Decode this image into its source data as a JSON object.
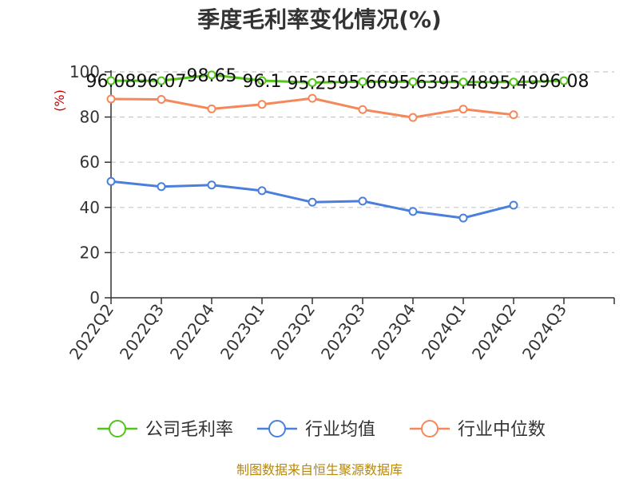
{
  "chart_data": {
    "type": "line",
    "title": "季度毛利率变化情况(%)",
    "ylabel": "(%)",
    "xlabel": "",
    "ylim": [
      0,
      100
    ],
    "yticks": [
      0,
      20,
      40,
      60,
      80,
      100
    ],
    "grid": true,
    "legend_position": "bottom",
    "categories": [
      "2022Q2",
      "2022Q3",
      "2022Q4",
      "2023Q1",
      "2023Q2",
      "2023Q3",
      "2023Q4",
      "2024Q1",
      "2024Q2",
      "2024Q3"
    ],
    "series": [
      {
        "name": "公司毛利率",
        "color": "#52c41a",
        "values": [
          96.08,
          96.07,
          98.65,
          96.1,
          95.25,
          95.66,
          95.63,
          95.48,
          95.49,
          96.08
        ],
        "labels": [
          "96.08",
          "96.07",
          "98.65",
          "96.1",
          "95.25",
          "95.66",
          "95.63",
          "95.48",
          "95.49",
          "96.08"
        ],
        "show_labels": true
      },
      {
        "name": "行业均值",
        "color": "#4a7fdb",
        "values": [
          51.5,
          49.2,
          49.9,
          47.4,
          42.3,
          42.8,
          38.2,
          35.3,
          41.0,
          null
        ],
        "show_labels": false
      },
      {
        "name": "行业中位数",
        "color": "#f4885a",
        "values": [
          88.0,
          87.8,
          83.6,
          85.6,
          88.3,
          83.3,
          79.8,
          83.5,
          81.0,
          null
        ],
        "show_labels": false
      }
    ],
    "source": "制图数据来自恒生聚源数据库"
  }
}
